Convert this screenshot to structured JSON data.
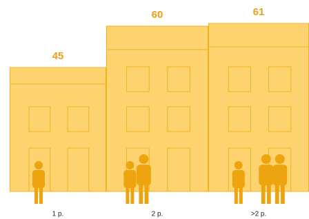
{
  "chart_data": {
    "type": "bar",
    "categories": [
      "1 p.",
      "2 p.",
      ">2 p."
    ],
    "values": [
      45,
      60,
      61
    ],
    "color": "#fdd36f",
    "people": [
      1,
      2,
      3
    ]
  }
}
